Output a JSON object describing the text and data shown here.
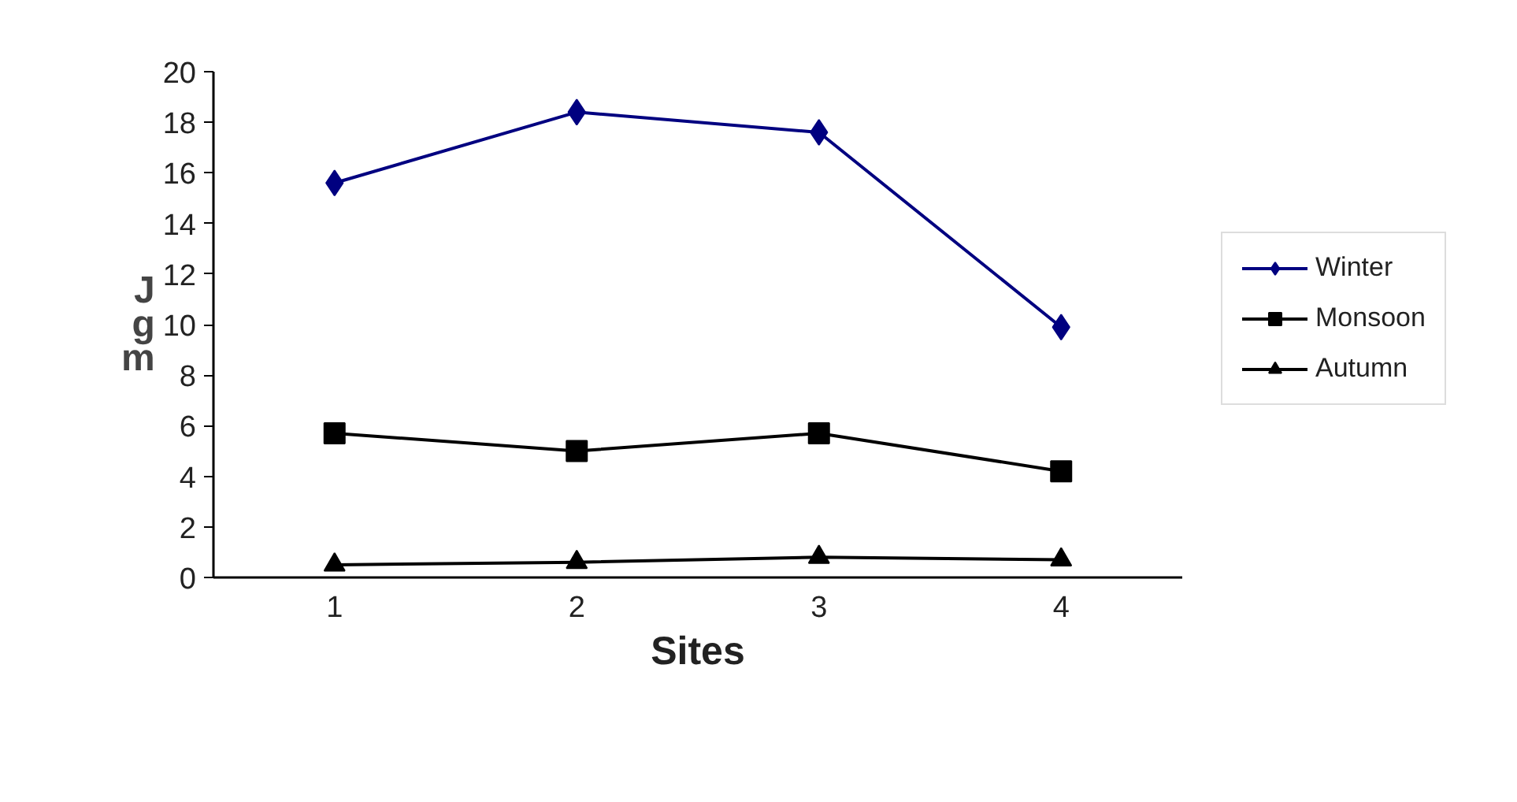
{
  "chart_data": {
    "type": "line",
    "xlabel": "Sites",
    "ylabel": "Jgm",
    "categories": [
      "1",
      "2",
      "3",
      "4"
    ],
    "series": [
      {
        "name": "Winter",
        "color": "#000080",
        "marker": "diamond",
        "values": [
          15.6,
          18.4,
          17.6,
          9.9
        ]
      },
      {
        "name": "Monsoon",
        "color": "#000000",
        "marker": "square",
        "values": [
          5.7,
          5.0,
          5.7,
          4.2
        ]
      },
      {
        "name": "Autumn",
        "color": "#000000",
        "marker": "triangle",
        "values": [
          0.5,
          0.6,
          0.8,
          0.7
        ]
      }
    ],
    "ylim": [
      0,
      20
    ],
    "yticks": [
      0,
      2,
      4,
      6,
      8,
      10,
      12,
      14,
      16,
      18,
      20
    ],
    "grid": false,
    "legend": "right",
    "line_style": "solid"
  }
}
